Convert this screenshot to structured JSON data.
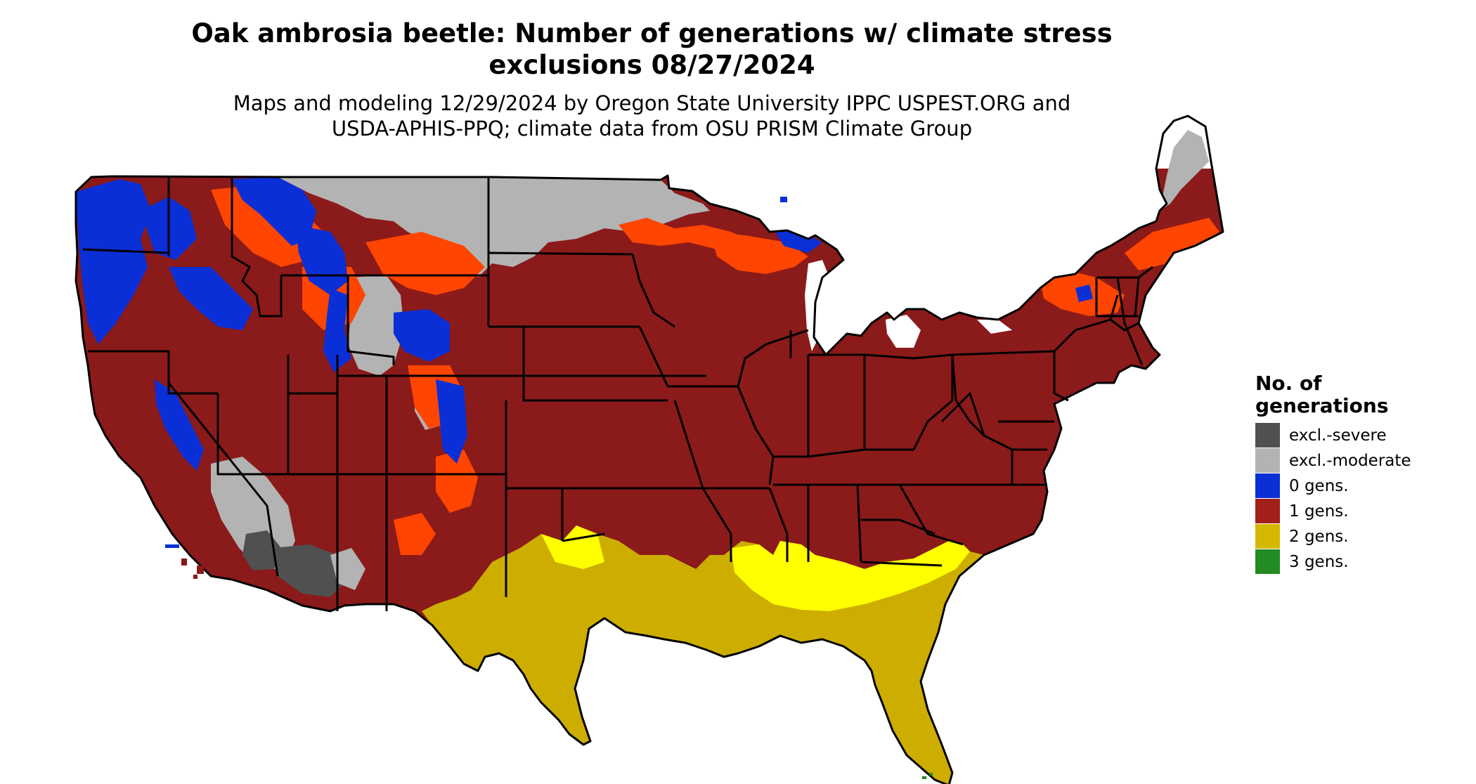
{
  "title": {
    "line1": "Oak ambrosia beetle: Number of generations w/ climate stress",
    "line2": "exclusions 08/27/2024"
  },
  "subtitle": {
    "line1": "Maps and modeling 12/29/2024 by Oregon State University IPPC USPEST.ORG and",
    "line2": "USDA-APHIS-PPQ; climate data from OSU PRISM Climate Group"
  },
  "legend": {
    "title_line1": "No. of",
    "title_line2": "generations",
    "items": [
      {
        "label": "excl.-severe",
        "color": "#505050"
      },
      {
        "label": "excl.-moderate",
        "color": "#b3b3b3"
      },
      {
        "label": "0 gens.",
        "color": "#0a2fd6"
      },
      {
        "label": "1 gens.",
        "color": "#8b1a1a"
      },
      {
        "label": "2 gens.",
        "color": "#cdae00"
      },
      {
        "label": "3 gens.",
        "color": "#228b22"
      }
    ]
  },
  "colors": {
    "excl_severe": "#505050",
    "excl_moderate": "#b3b3b3",
    "zero_gens": "#0a2fd6",
    "one_gen": "#8b1a1a",
    "one_gen_high": "#ff4500",
    "two_gens": "#cdae00",
    "two_gens_high": "#ffff00",
    "water": "#ffffff",
    "border": "#000000"
  }
}
